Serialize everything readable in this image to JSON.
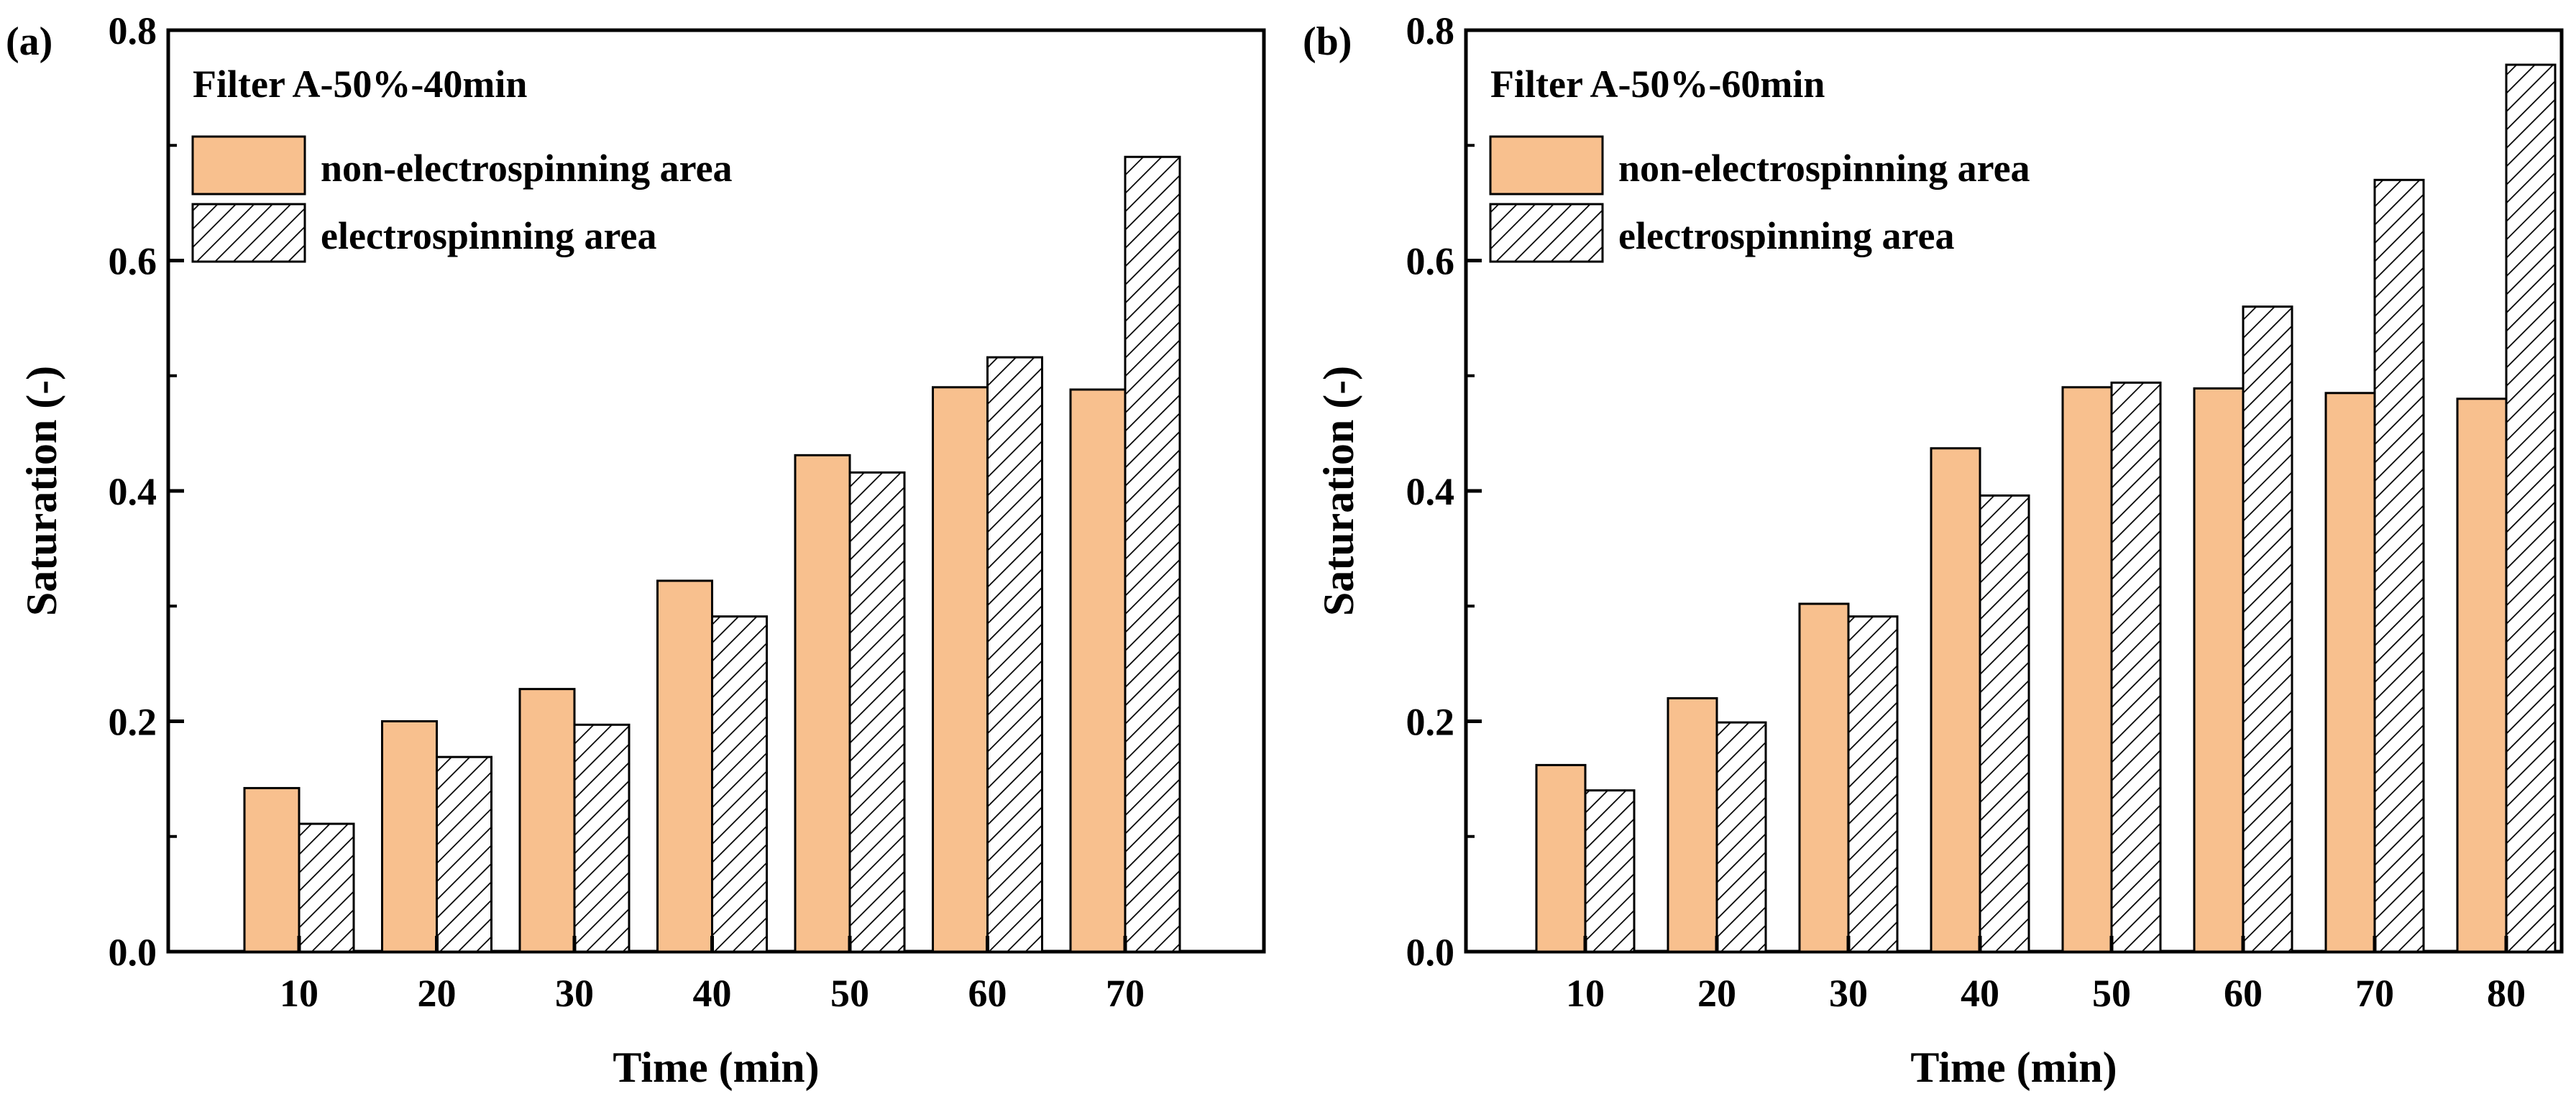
{
  "chart_data": [
    {
      "type": "bar",
      "panel_label": "(a)",
      "title": "Filter A-50%-40min",
      "xlabel": "Time (min)",
      "ylabel": "Saturation (-)",
      "ylim": [
        0,
        0.8
      ],
      "yticks": [
        "0.0",
        "0.2",
        "0.4",
        "0.6",
        "0.8"
      ],
      "categories": [
        "10",
        "20",
        "30",
        "40",
        "50",
        "60",
        "70"
      ],
      "series": [
        {
          "name": "non-electrospinning area",
          "pattern": "solid",
          "color": "#f8c08e",
          "values": [
            0.142,
            0.2,
            0.228,
            0.322,
            0.431,
            0.49,
            0.488
          ]
        },
        {
          "name": "electrospinning area",
          "pattern": "hatch",
          "color": "#ffffff",
          "values": [
            0.111,
            0.169,
            0.197,
            0.291,
            0.416,
            0.516,
            0.69
          ]
        }
      ]
    },
    {
      "type": "bar",
      "panel_label": "(b)",
      "title": "Filter A-50%-60min",
      "xlabel": "Time (min)",
      "ylabel": "Saturation (-)",
      "ylim": [
        0,
        0.8
      ],
      "yticks": [
        "0.0",
        "0.2",
        "0.4",
        "0.6",
        "0.8"
      ],
      "categories": [
        "10",
        "20",
        "30",
        "40",
        "50",
        "60",
        "70",
        "80"
      ],
      "series": [
        {
          "name": "non-electrospinning area",
          "pattern": "solid",
          "color": "#f8c08e",
          "values": [
            0.162,
            0.22,
            0.302,
            0.437,
            0.49,
            0.489,
            0.485,
            0.48
          ]
        },
        {
          "name": "electrospinning area",
          "pattern": "hatch",
          "color": "#ffffff",
          "values": [
            0.14,
            0.199,
            0.291,
            0.396,
            0.494,
            0.56,
            0.67,
            0.77
          ]
        }
      ]
    }
  ]
}
